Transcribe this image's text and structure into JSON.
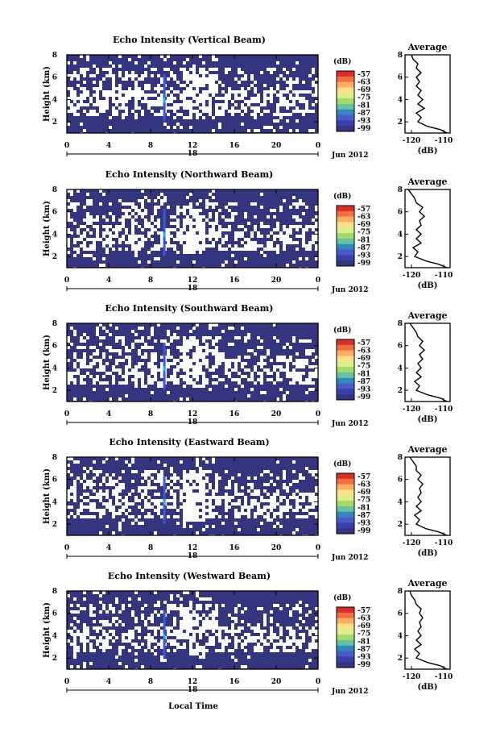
{
  "figure": {
    "xlabel": "Local Time",
    "date_label": "Jun 2012",
    "colorbar_unit": "(dB)",
    "colorbar_ticks": [
      "-57",
      "-63",
      "-69",
      "-75",
      "-81",
      "-87",
      "-93",
      "-99"
    ],
    "colorbar_colors": [
      "#d73027",
      "#f46d43",
      "#fdae61",
      "#fee08b",
      "#d9ef8b",
      "#a6d96a",
      "#66c2a5",
      "#3288bd",
      "#4a5bc9",
      "#3b3fa8",
      "#34357e"
    ],
    "fill_color": "#34357e",
    "avg_title": "Average",
    "avg_xlabel": "(dB)"
  },
  "chart_data": [
    {
      "type": "heatmap",
      "title": "Echo Intensity (Vertical Beam)",
      "ylabel": "Height (km)",
      "xlabel": "Local Time",
      "x_ticks": [
        "0",
        "4",
        "8",
        "12",
        "16",
        "20",
        "0"
      ],
      "x_sublabel": "18",
      "y_ticks": [
        "2",
        "4",
        "6",
        "8"
      ],
      "xlim": [
        0,
        24
      ],
      "ylim": [
        1,
        8
      ],
      "colorbar": {
        "unit": "(dB)",
        "ticks": [
          -57,
          -63,
          -69,
          -75,
          -81,
          -87,
          -93,
          -99
        ]
      },
      "average_profile": {
        "title": "Average",
        "xlabel": "(dB)",
        "x_ticks": [
          "-120",
          "-110"
        ],
        "xlim": [
          -122,
          -108
        ],
        "y_ticks": [
          "2",
          "4",
          "6",
          "8"
        ],
        "ylim": [
          1,
          8
        ],
        "height_km": [
          1.0,
          1.3,
          1.6,
          2.0,
          2.4,
          2.8,
          3.2,
          3.6,
          4.0,
          4.4,
          4.8,
          5.2,
          5.6,
          6.0,
          6.4,
          6.8,
          7.2,
          7.6,
          8.0
        ],
        "echo_db": [
          -109,
          -111,
          -115,
          -118,
          -117,
          -118.5,
          -116,
          -118,
          -116.5,
          -118,
          -117,
          -118.5,
          -117.5,
          -118.5,
          -117,
          -118.5,
          -118,
          -119.5,
          -120
        ]
      }
    },
    {
      "type": "heatmap",
      "title": "Echo Intensity (Northward Beam)",
      "ylabel": "Height (km)",
      "xlabel": "Local Time",
      "x_ticks": [
        "0",
        "4",
        "8",
        "12",
        "16",
        "20",
        "0"
      ],
      "x_sublabel": "18",
      "y_ticks": [
        "2",
        "4",
        "6",
        "8"
      ],
      "xlim": [
        0,
        24
      ],
      "ylim": [
        1,
        8
      ],
      "colorbar": {
        "unit": "(dB)",
        "ticks": [
          -57,
          -63,
          -69,
          -75,
          -81,
          -87,
          -93,
          -99
        ]
      },
      "average_profile": {
        "title": "Average",
        "xlabel": "(dB)",
        "x_ticks": [
          "-120",
          "-110"
        ],
        "xlim": [
          -122,
          -108
        ],
        "y_ticks": [
          "2",
          "4",
          "6",
          "8"
        ],
        "ylim": [
          1,
          8
        ],
        "height_km": [
          1.0,
          1.3,
          1.6,
          2.0,
          2.4,
          2.8,
          3.2,
          3.6,
          4.0,
          4.4,
          4.8,
          5.2,
          5.6,
          6.0,
          6.4,
          6.8,
          7.2,
          7.6,
          8.0
        ],
        "echo_db": [
          -109,
          -111.5,
          -115.5,
          -119,
          -118,
          -119.5,
          -117,
          -118.5,
          -117,
          -118.5,
          -117,
          -117.5,
          -116,
          -117.5,
          -116.5,
          -118.5,
          -119,
          -120,
          -121
        ]
      }
    },
    {
      "type": "heatmap",
      "title": "Echo Intensity (Southward Beam)",
      "ylabel": "Height (km)",
      "xlabel": "Local Time",
      "x_ticks": [
        "0",
        "4",
        "8",
        "12",
        "16",
        "20",
        "0"
      ],
      "x_sublabel": "18",
      "y_ticks": [
        "2",
        "4",
        "6",
        "8"
      ],
      "xlim": [
        0,
        24
      ],
      "ylim": [
        1,
        8
      ],
      "colorbar": {
        "unit": "(dB)",
        "ticks": [
          -57,
          -63,
          -69,
          -75,
          -81,
          -87,
          -93,
          -99
        ]
      },
      "average_profile": {
        "title": "Average",
        "xlabel": "(dB)",
        "x_ticks": [
          "-120",
          "-110"
        ],
        "xlim": [
          -122,
          -108
        ],
        "y_ticks": [
          "2",
          "4",
          "6",
          "8"
        ],
        "ylim": [
          1,
          8
        ],
        "height_km": [
          1.0,
          1.3,
          1.6,
          2.0,
          2.4,
          2.8,
          3.2,
          3.6,
          4.0,
          4.4,
          4.8,
          5.2,
          5.6,
          6.0,
          6.4,
          6.8,
          7.2,
          7.6,
          8.0
        ],
        "echo_db": [
          -109,
          -111,
          -115,
          -118.5,
          -117.5,
          -119,
          -117,
          -118.5,
          -117,
          -118,
          -116.5,
          -117.5,
          -116,
          -117.5,
          -116.5,
          -118,
          -118.5,
          -119.5,
          -120.5
        ]
      }
    },
    {
      "type": "heatmap",
      "title": "Echo Intensity (Eastward Beam)",
      "ylabel": "Height (km)",
      "xlabel": "Local Time",
      "x_ticks": [
        "0",
        "4",
        "8",
        "12",
        "16",
        "20",
        "0"
      ],
      "x_sublabel": "18",
      "y_ticks": [
        "2",
        "4",
        "6",
        "8"
      ],
      "xlim": [
        0,
        24
      ],
      "ylim": [
        1,
        8
      ],
      "colorbar": {
        "unit": "(dB)",
        "ticks": [
          -57,
          -63,
          -69,
          -75,
          -81,
          -87,
          -93,
          -99
        ]
      },
      "average_profile": {
        "title": "Average",
        "xlabel": "(dB)",
        "x_ticks": [
          "-120",
          "-110"
        ],
        "xlim": [
          -122,
          -108
        ],
        "y_ticks": [
          "2",
          "4",
          "6",
          "8"
        ],
        "ylim": [
          1,
          8
        ],
        "height_km": [
          1.0,
          1.3,
          1.6,
          2.0,
          2.4,
          2.8,
          3.2,
          3.6,
          4.0,
          4.4,
          4.8,
          5.2,
          5.6,
          6.0,
          6.4,
          6.8,
          7.2,
          7.6,
          8.0
        ],
        "echo_db": [
          -109,
          -111.5,
          -115.5,
          -118.5,
          -117.5,
          -119,
          -117,
          -118.5,
          -117,
          -118,
          -117,
          -117.5,
          -116.5,
          -118,
          -117,
          -118.5,
          -118.5,
          -119.5,
          -120.5
        ]
      }
    },
    {
      "type": "heatmap",
      "title": "Echo Intensity (Westward Beam)",
      "ylabel": "Height (km)",
      "xlabel": "Local Time",
      "x_ticks": [
        "0",
        "4",
        "8",
        "12",
        "16",
        "20",
        "0"
      ],
      "x_sublabel": "18",
      "y_ticks": [
        "2",
        "4",
        "6",
        "8"
      ],
      "xlim": [
        0,
        24
      ],
      "ylim": [
        1,
        8
      ],
      "colorbar": {
        "unit": "(dB)",
        "ticks": [
          -57,
          -63,
          -69,
          -75,
          -81,
          -87,
          -93,
          -99
        ]
      },
      "average_profile": {
        "title": "Average",
        "xlabel": "(dB)",
        "x_ticks": [
          "-120",
          "-110"
        ],
        "xlim": [
          -122,
          -108
        ],
        "y_ticks": [
          "2",
          "4",
          "6",
          "8"
        ],
        "ylim": [
          1,
          8
        ],
        "height_km": [
          1.0,
          1.3,
          1.6,
          2.0,
          2.4,
          2.8,
          3.2,
          3.6,
          4.0,
          4.4,
          4.8,
          5.2,
          5.6,
          6.0,
          6.4,
          6.8,
          7.2,
          7.6,
          8.0
        ],
        "echo_db": [
          -109,
          -111,
          -115,
          -118.5,
          -117.5,
          -119,
          -117,
          -118.5,
          -117,
          -118,
          -117,
          -117.5,
          -116.5,
          -117.5,
          -117,
          -118.5,
          -119,
          -120,
          -120.5
        ]
      }
    }
  ]
}
